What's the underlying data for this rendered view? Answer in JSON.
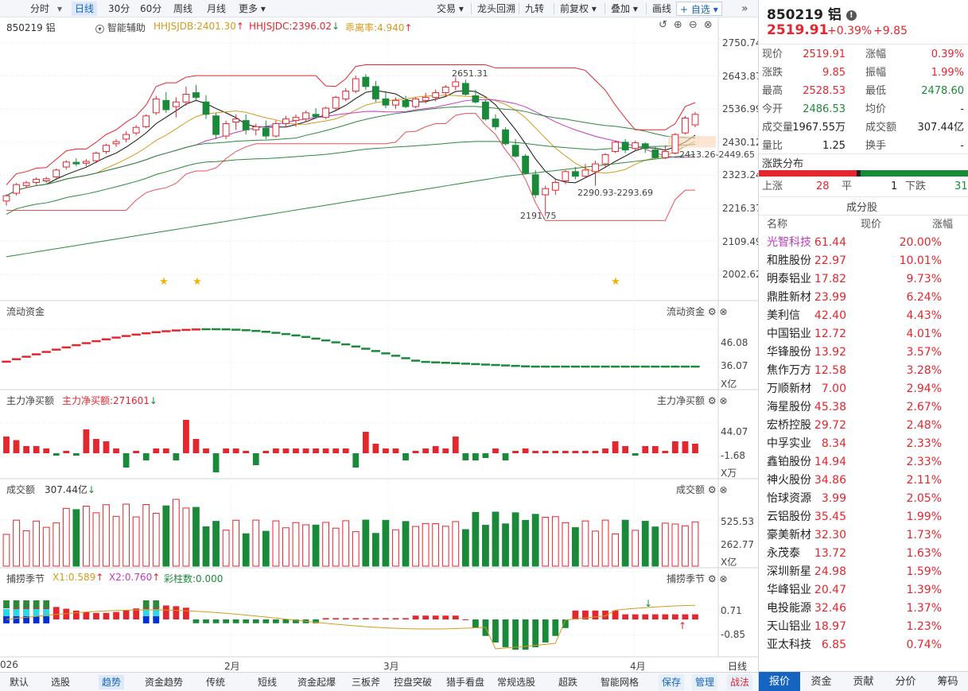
{
  "toolbar": {
    "left": [
      "分时",
      "日线",
      "30分",
      "60分",
      "周线",
      "月线",
      "更多"
    ],
    "right": [
      "交易",
      "龙头回溯",
      "九转",
      "前复权",
      "叠加",
      "画线",
      "自选"
    ]
  },
  "chart_header": {
    "code": "850219 铝",
    "assist": "智能辅助",
    "ind1": "HHJSJDB:2401.30",
    "ind2": "HHJSJDC:2396.02",
    "ind3": "乖离率:4.940"
  },
  "price_axis": [
    "2750.74",
    "2643.87",
    "2536.99",
    "2430.12",
    "2323.24",
    "2216.37",
    "2109.49",
    "2002.62"
  ],
  "annotations": {
    "high": "2651.31",
    "low": "2191.75",
    "range1": "2290.93-2293.69",
    "range2": "2413.26-2449.65"
  },
  "panels": {
    "flow": {
      "title": "流动资金",
      "right_title": "流动资金",
      "axis": [
        "46.08",
        "36.07"
      ],
      "unit": "X亿"
    },
    "net": {
      "title": "主力净买额",
      "value": "主力净买额:271601",
      "right_title": "主力净买额",
      "axis": [
        "44.07",
        "-1.68"
      ],
      "unit": "X万"
    },
    "vol": {
      "title": "成交额",
      "value": "307.44亿",
      "right_title": "成交额",
      "axis": [
        "525.53",
        "262.77"
      ],
      "unit": "X亿"
    },
    "season": {
      "title": "捕捞季节",
      "x1": "X1:0.589",
      "x2": "X2:0.760",
      "bar": "彩柱数:0.000",
      "right_title": "捕捞季节",
      "axis": [
        "0.71",
        "-0.85"
      ]
    }
  },
  "date_axis": [
    "026",
    "2月",
    "3月",
    "4月"
  ],
  "period_label": "日线",
  "bottom_tabs": [
    "默认",
    "选股",
    "趋势",
    "资金趋势",
    "传统",
    "短线",
    "资金起爆",
    "三板斧",
    "控盘突破",
    "猎手看盘",
    "常规选股",
    "超跌",
    "智能网格"
  ],
  "bottom_buttons": [
    "保存",
    "管理",
    "战法"
  ],
  "quote": {
    "title": "850219 铝",
    "price": "2519.91",
    "change_pct": "+0.39%",
    "change": "+9.85",
    "rows": [
      {
        "l1": "现价",
        "v1": "2519.91",
        "l2": "涨幅",
        "v2": "0.39%"
      },
      {
        "l1": "涨跌",
        "v1": "9.85",
        "l2": "振幅",
        "v2": "1.99%"
      },
      {
        "l1": "最高",
        "v1": "2528.53",
        "l2": "最低",
        "v2": "2478.60"
      },
      {
        "l1": "今开",
        "v1": "2486.53",
        "l2": "均价",
        "v2": "-"
      },
      {
        "l1": "成交量",
        "v1": "1967.55万",
        "l2": "成交额",
        "v2": "307.44亿"
      },
      {
        "l1": "量比",
        "v1": "1.25",
        "l2": "换手",
        "v2": "-"
      }
    ]
  },
  "distribution": {
    "title": "涨跌分布",
    "up_label": "上涨",
    "up": "28",
    "flat_label": "平",
    "flat": "1",
    "down_label": "下跌",
    "down": "31"
  },
  "constituents": {
    "title": "成分股",
    "headers": [
      "名称",
      "现价",
      "涨幅"
    ],
    "rows": [
      {
        "name": "光智科技",
        "price": "61.44",
        "pct": "20.00%"
      },
      {
        "name": "和胜股份",
        "price": "22.97",
        "pct": "10.01%"
      },
      {
        "name": "明泰铝业",
        "price": "17.82",
        "pct": "9.73%"
      },
      {
        "name": "鼎胜新材",
        "price": "23.99",
        "pct": "6.24%"
      },
      {
        "name": "美利信",
        "price": "42.40",
        "pct": "4.43%"
      },
      {
        "name": "中国铝业",
        "price": "12.72",
        "pct": "4.01%"
      },
      {
        "name": "华锋股份",
        "price": "13.92",
        "pct": "3.57%"
      },
      {
        "name": "焦作万方",
        "price": "12.58",
        "pct": "3.28%"
      },
      {
        "name": "万顺新材",
        "price": "7.00",
        "pct": "2.94%"
      },
      {
        "name": "海星股份",
        "price": "45.38",
        "pct": "2.67%"
      },
      {
        "name": "宏桥控股",
        "price": "29.72",
        "pct": "2.48%"
      },
      {
        "name": "中孚实业",
        "price": "8.34",
        "pct": "2.33%"
      },
      {
        "name": "鑫铂股份",
        "price": "14.94",
        "pct": "2.33%"
      },
      {
        "name": "神火股份",
        "price": "34.86",
        "pct": "2.11%"
      },
      {
        "name": "怡球资源",
        "price": "3.99",
        "pct": "2.05%"
      },
      {
        "name": "云铝股份",
        "price": "35.45",
        "pct": "1.99%"
      },
      {
        "name": "豪美新材",
        "price": "32.30",
        "pct": "1.73%"
      },
      {
        "name": "永茂泰",
        "price": "13.72",
        "pct": "1.63%"
      },
      {
        "name": "深圳新星",
        "price": "24.98",
        "pct": "1.59%"
      },
      {
        "name": "华峰铝业",
        "price": "20.47",
        "pct": "1.39%"
      },
      {
        "name": "电投能源",
        "price": "32.46",
        "pct": "1.37%"
      },
      {
        "name": "天山铝业",
        "price": "18.97",
        "pct": "1.23%"
      },
      {
        "name": "亚太科技",
        "price": "6.85",
        "pct": "0.74%"
      }
    ]
  },
  "right_tabs": [
    "报价",
    "资金",
    "贡献",
    "分价",
    "筹码"
  ],
  "colors": {
    "up": "#e4262e",
    "down": "#1a8a3a",
    "accent": "#1565c0"
  },
  "chart_data": {
    "type": "candlestick",
    "note_ranges": {
      "price_axis": [
        2002.62,
        2750.74
      ]
    },
    "ohlc": [
      [
        2240,
        2262,
        2225,
        2257
      ],
      [
        2265,
        2298,
        2258,
        2293
      ],
      [
        2290,
        2305,
        2282,
        2299
      ],
      [
        2300,
        2316,
        2292,
        2310
      ],
      [
        2305,
        2318,
        2298,
        2312
      ],
      [
        2318,
        2345,
        2312,
        2340
      ],
      [
        2350,
        2372,
        2342,
        2366
      ],
      [
        2365,
        2378,
        2352,
        2360
      ],
      [
        2362,
        2375,
        2352,
        2368
      ],
      [
        2370,
        2400,
        2362,
        2395
      ],
      [
        2400,
        2425,
        2392,
        2420
      ],
      [
        2425,
        2440,
        2415,
        2432
      ],
      [
        2440,
        2465,
        2430,
        2455
      ],
      [
        2460,
        2485,
        2452,
        2478
      ],
      [
        2480,
        2520,
        2475,
        2515
      ],
      [
        2525,
        2580,
        2518,
        2570
      ],
      [
        2565,
        2592,
        2525,
        2535
      ],
      [
        2545,
        2575,
        2510,
        2560
      ],
      [
        2560,
        2610,
        2548,
        2585
      ],
      [
        2590,
        2615,
        2562,
        2575
      ],
      [
        2560,
        2582,
        2505,
        2520
      ],
      [
        2515,
        2525,
        2440,
        2455
      ],
      [
        2450,
        2500,
        2440,
        2490
      ],
      [
        2495,
        2520,
        2470,
        2505
      ],
      [
        2500,
        2520,
        2455,
        2470
      ],
      [
        2470,
        2490,
        2452,
        2480
      ],
      [
        2475,
        2500,
        2440,
        2450
      ],
      [
        2450,
        2500,
        2445,
        2490
      ],
      [
        2490,
        2515,
        2478,
        2505
      ],
      [
        2500,
        2520,
        2480,
        2510
      ],
      [
        2505,
        2532,
        2495,
        2525
      ],
      [
        2520,
        2540,
        2505,
        2512
      ],
      [
        2510,
        2545,
        2505,
        2540
      ],
      [
        2540,
        2580,
        2532,
        2575
      ],
      [
        2570,
        2605,
        2562,
        2595
      ],
      [
        2595,
        2645,
        2588,
        2635
      ],
      [
        2640,
        2650,
        2600,
        2610
      ],
      [
        2610,
        2628,
        2560,
        2570
      ],
      [
        2570,
        2595,
        2540,
        2550
      ],
      [
        2550,
        2575,
        2538,
        2565
      ],
      [
        2565,
        2580,
        2540,
        2545
      ],
      [
        2545,
        2575,
        2540,
        2570
      ],
      [
        2565,
        2590,
        2555,
        2575
      ],
      [
        2575,
        2600,
        2562,
        2590
      ],
      [
        2590,
        2615,
        2578,
        2608
      ],
      [
        2610,
        2640,
        2598,
        2625
      ],
      [
        2620,
        2632,
        2580,
        2585
      ],
      [
        2580,
        2600,
        2555,
        2560
      ],
      [
        2560,
        2568,
        2500,
        2505
      ],
      [
        2505,
        2520,
        2470,
        2480
      ],
      [
        2470,
        2478,
        2420,
        2425
      ],
      [
        2420,
        2440,
        2380,
        2385
      ],
      [
        2385,
        2392,
        2325,
        2330
      ],
      [
        2325,
        2340,
        2250,
        2260
      ],
      [
        2260,
        2290,
        2192,
        2280
      ],
      [
        2275,
        2310,
        2260,
        2300
      ],
      [
        2305,
        2340,
        2295,
        2335
      ],
      [
        2335,
        2350,
        2310,
        2320
      ],
      [
        2320,
        2360,
        2315,
        2340
      ],
      [
        2335,
        2370,
        2290,
        2360
      ],
      [
        2360,
        2395,
        2350,
        2390
      ],
      [
        2400,
        2435,
        2395,
        2430
      ],
      [
        2430,
        2440,
        2395,
        2405
      ],
      [
        2410,
        2435,
        2400,
        2428
      ],
      [
        2425,
        2430,
        2395,
        2410
      ],
      [
        2405,
        2415,
        2375,
        2380
      ],
      [
        2380,
        2420,
        2375,
        2400
      ],
      [
        2395,
        2460,
        2390,
        2455
      ],
      [
        2460,
        2515,
        2455,
        2508
      ],
      [
        2486,
        2528,
        2478,
        2520
      ]
    ]
  }
}
